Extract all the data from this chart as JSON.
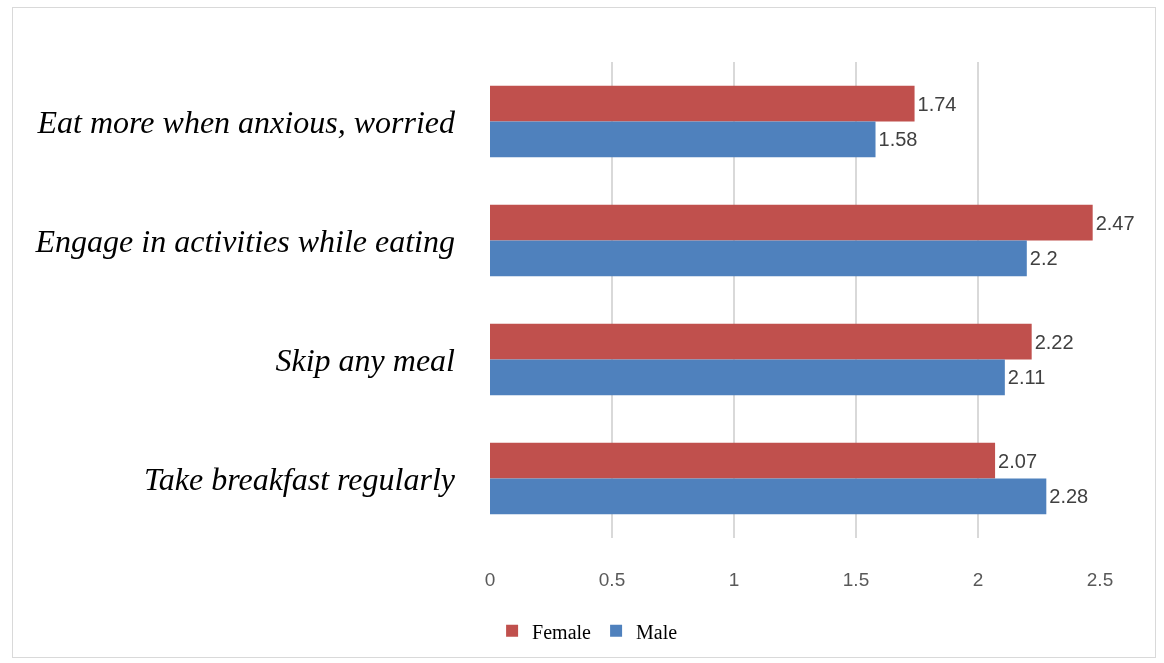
{
  "chart_data": {
    "type": "bar",
    "orientation": "horizontal",
    "categories": [
      "Eat more when anxious, worried",
      "Engage in activities while eating",
      "Skip any meal",
      "Take breakfast regularly"
    ],
    "series": [
      {
        "name": "Female",
        "color": "#c0504d",
        "values": [
          1.74,
          2.47,
          2.22,
          2.07
        ]
      },
      {
        "name": "Male",
        "color": "#4f81bd",
        "values": [
          1.58,
          2.2,
          2.11,
          2.28
        ]
      }
    ],
    "xlim": [
      0,
      2.5
    ],
    "xticks": [
      0,
      0.5,
      1,
      1.5,
      2,
      2.5
    ],
    "grid": "x",
    "legend": "bottom",
    "data_labels": true
  }
}
